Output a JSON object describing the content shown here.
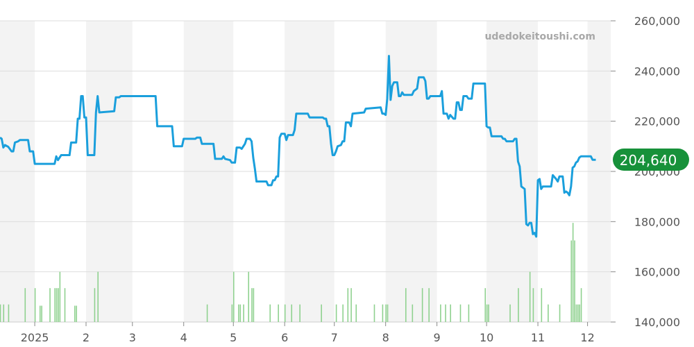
{
  "watermark": "udedokeitoushi.com",
  "chart_data": {
    "type": "line",
    "title": "",
    "xlabel": "",
    "ylabel": "",
    "ylim": [
      140000,
      260000
    ],
    "y_ticks": [
      140000,
      160000,
      180000,
      200000,
      220000,
      240000,
      260000
    ],
    "y_tick_labels": [
      "140,000",
      "160,000",
      "180,000",
      "200,000",
      "220,000",
      "240,000",
      "260,000"
    ],
    "x_range": [
      "2024-12-11",
      "2025-12-15"
    ],
    "x_ticks": [
      {
        "date": "2025-01-01",
        "label": "2025"
      },
      {
        "date": "2025-02-01",
        "label": "2"
      },
      {
        "date": "2025-03-01",
        "label": "3"
      },
      {
        "date": "2025-04-01",
        "label": "4"
      },
      {
        "date": "2025-05-01",
        "label": "5"
      },
      {
        "date": "2025-06-01",
        "label": "6"
      },
      {
        "date": "2025-07-01",
        "label": "7"
      },
      {
        "date": "2025-08-01",
        "label": "8"
      },
      {
        "date": "2025-09-01",
        "label": "9"
      },
      {
        "date": "2025-10-01",
        "label": "10"
      },
      {
        "date": "2025-11-01",
        "label": "11"
      },
      {
        "date": "2025-12-01",
        "label": "12"
      }
    ],
    "grid": true,
    "line_color": "#1a9fdc",
    "volume_color": "#8fd18f",
    "last_value_color": "#17913a",
    "last_value_label": "204,640",
    "series": [
      {
        "points": [
          [
            "2024-12-11",
            213500
          ],
          [
            "2024-12-12",
            213000
          ],
          [
            "2024-12-13",
            209500
          ],
          [
            "2024-12-14",
            210500
          ],
          [
            "2024-12-16",
            209800
          ],
          [
            "2024-12-18",
            208000
          ],
          [
            "2024-12-19",
            208000
          ],
          [
            "2024-12-20",
            211500
          ],
          [
            "2024-12-22",
            212000
          ],
          [
            "2024-12-23",
            212500
          ],
          [
            "2024-12-28",
            212500
          ],
          [
            "2024-12-29",
            208000
          ],
          [
            "2024-12-31",
            208000
          ],
          [
            "2025-01-01",
            203000
          ],
          [
            "2025-01-13",
            203000
          ],
          [
            "2025-01-14",
            206000
          ],
          [
            "2025-01-15",
            204500
          ],
          [
            "2025-01-17",
            206500
          ],
          [
            "2025-01-22",
            206500
          ],
          [
            "2025-01-23",
            211500
          ],
          [
            "2025-01-26",
            211500
          ],
          [
            "2025-01-27",
            221000
          ],
          [
            "2025-01-28",
            221000
          ],
          [
            "2025-01-29",
            230000
          ],
          [
            "2025-01-30",
            230000
          ],
          [
            "2025-01-31",
            221500
          ],
          [
            "2025-02-01",
            221500
          ],
          [
            "2025-02-02",
            206500
          ],
          [
            "2025-02-06",
            206500
          ],
          [
            "2025-02-07",
            223500
          ],
          [
            "2025-02-08",
            230000
          ],
          [
            "2025-02-09",
            223500
          ],
          [
            "2025-02-18",
            224000
          ],
          [
            "2025-02-19",
            229500
          ],
          [
            "2025-02-21",
            229500
          ],
          [
            "2025-02-22",
            230000
          ],
          [
            "2025-03-15",
            230000
          ],
          [
            "2025-03-16",
            218000
          ],
          [
            "2025-03-25",
            218000
          ],
          [
            "2025-03-26",
            210000
          ],
          [
            "2025-03-31",
            210000
          ],
          [
            "2025-04-01",
            213000
          ],
          [
            "2025-04-08",
            213000
          ],
          [
            "2025-04-09",
            213500
          ],
          [
            "2025-04-11",
            213500
          ],
          [
            "2025-04-12",
            211000
          ],
          [
            "2025-04-19",
            211000
          ],
          [
            "2025-04-20",
            205000
          ],
          [
            "2025-04-24",
            205000
          ],
          [
            "2025-04-25",
            206000
          ],
          [
            "2025-04-26",
            205000
          ],
          [
            "2025-04-29",
            204500
          ],
          [
            "2025-04-30",
            203500
          ],
          [
            "2025-05-02",
            203500
          ],
          [
            "2025-05-03",
            209500
          ],
          [
            "2025-05-05",
            209500
          ],
          [
            "2025-05-06",
            209000
          ],
          [
            "2025-05-08",
            211000
          ],
          [
            "2025-05-09",
            213000
          ],
          [
            "2025-05-11",
            213000
          ],
          [
            "2025-05-12",
            212000
          ],
          [
            "2025-05-13",
            205500
          ],
          [
            "2025-05-14",
            201000
          ],
          [
            "2025-05-15",
            196000
          ],
          [
            "2025-05-21",
            196000
          ],
          [
            "2025-05-22",
            194500
          ],
          [
            "2025-05-24",
            194500
          ],
          [
            "2025-05-25",
            196500
          ],
          [
            "2025-05-26",
            196500
          ],
          [
            "2025-05-27",
            198000
          ],
          [
            "2025-05-28",
            198000
          ],
          [
            "2025-05-29",
            213500
          ],
          [
            "2025-05-30",
            215000
          ],
          [
            "2025-06-01",
            215000
          ],
          [
            "2025-06-02",
            212500
          ],
          [
            "2025-06-03",
            214500
          ],
          [
            "2025-06-06",
            214500
          ],
          [
            "2025-06-07",
            216500
          ],
          [
            "2025-06-08",
            223000
          ],
          [
            "2025-06-15",
            223000
          ],
          [
            "2025-06-16",
            221500
          ],
          [
            "2025-06-24",
            221500
          ],
          [
            "2025-06-25",
            221000
          ],
          [
            "2025-06-26",
            221000
          ],
          [
            "2025-06-27",
            218000
          ],
          [
            "2025-06-28",
            218000
          ],
          [
            "2025-06-29",
            211000
          ],
          [
            "2025-06-30",
            206500
          ],
          [
            "2025-07-01",
            206500
          ],
          [
            "2025-07-02",
            208000
          ],
          [
            "2025-07-03",
            210000
          ],
          [
            "2025-07-05",
            210500
          ],
          [
            "2025-07-06",
            212000
          ],
          [
            "2025-07-07",
            212000
          ],
          [
            "2025-07-08",
            219500
          ],
          [
            "2025-07-10",
            219500
          ],
          [
            "2025-07-11",
            218000
          ],
          [
            "2025-07-12",
            223000
          ],
          [
            "2025-07-19",
            223500
          ],
          [
            "2025-07-20",
            225000
          ],
          [
            "2025-07-29",
            225500
          ],
          [
            "2025-07-30",
            223000
          ],
          [
            "2025-07-31",
            223000
          ],
          [
            "2025-08-01",
            222500
          ],
          [
            "2025-08-02",
            229000
          ],
          [
            "2025-08-03",
            246000
          ],
          [
            "2025-08-04",
            228500
          ],
          [
            "2025-08-05",
            234000
          ],
          [
            "2025-08-06",
            235500
          ],
          [
            "2025-08-08",
            235500
          ],
          [
            "2025-08-09",
            230000
          ],
          [
            "2025-08-10",
            230000
          ],
          [
            "2025-08-11",
            231500
          ],
          [
            "2025-08-12",
            230500
          ],
          [
            "2025-08-17",
            230500
          ],
          [
            "2025-08-18",
            232000
          ],
          [
            "2025-08-20",
            233000
          ],
          [
            "2025-08-21",
            237500
          ],
          [
            "2025-08-24",
            237500
          ],
          [
            "2025-08-25",
            236000
          ],
          [
            "2025-08-26",
            229000
          ],
          [
            "2025-08-27",
            229000
          ],
          [
            "2025-08-28",
            230000
          ],
          [
            "2025-09-03",
            230000
          ],
          [
            "2025-09-04",
            232000
          ],
          [
            "2025-09-05",
            223000
          ],
          [
            "2025-09-07",
            223000
          ],
          [
            "2025-09-08",
            221000
          ],
          [
            "2025-09-09",
            222500
          ],
          [
            "2025-09-11",
            221000
          ],
          [
            "2025-09-12",
            221000
          ],
          [
            "2025-09-13",
            227500
          ],
          [
            "2025-09-14",
            227500
          ],
          [
            "2025-09-15",
            224500
          ],
          [
            "2025-09-16",
            224500
          ],
          [
            "2025-09-17",
            230000
          ],
          [
            "2025-09-19",
            230000
          ],
          [
            "2025-09-20",
            229000
          ],
          [
            "2025-09-22",
            229000
          ],
          [
            "2025-09-23",
            235000
          ],
          [
            "2025-09-30",
            235000
          ],
          [
            "2025-10-01",
            218000
          ],
          [
            "2025-10-02",
            217500
          ],
          [
            "2025-10-03",
            217500
          ],
          [
            "2025-10-04",
            214000
          ],
          [
            "2025-10-10",
            214000
          ],
          [
            "2025-10-11",
            213000
          ],
          [
            "2025-10-12",
            213000
          ],
          [
            "2025-10-13",
            212000
          ],
          [
            "2025-10-17",
            212000
          ],
          [
            "2025-10-18",
            213000
          ],
          [
            "2025-10-19",
            213000
          ],
          [
            "2025-10-20",
            204000
          ],
          [
            "2025-10-21",
            202000
          ],
          [
            "2025-10-22",
            194000
          ],
          [
            "2025-10-24",
            193000
          ],
          [
            "2025-10-25",
            179000
          ],
          [
            "2025-10-26",
            178500
          ],
          [
            "2025-10-27",
            179500
          ],
          [
            "2025-10-28",
            179500
          ],
          [
            "2025-10-29",
            175000
          ],
          [
            "2025-10-30",
            175500
          ],
          [
            "2025-10-31",
            174000
          ],
          [
            "2025-11-01",
            196500
          ],
          [
            "2025-11-02",
            197000
          ],
          [
            "2025-11-03",
            193000
          ],
          [
            "2025-11-04",
            194000
          ],
          [
            "2025-11-09",
            194000
          ],
          [
            "2025-11-10",
            198500
          ],
          [
            "2025-11-12",
            197000
          ],
          [
            "2025-11-13",
            196000
          ],
          [
            "2025-11-14",
            198000
          ],
          [
            "2025-11-16",
            198000
          ],
          [
            "2025-11-17",
            191500
          ],
          [
            "2025-11-18",
            192000
          ],
          [
            "2025-11-19",
            191500
          ],
          [
            "2025-11-20",
            190500
          ],
          [
            "2025-11-21",
            194000
          ],
          [
            "2025-11-22",
            201500
          ],
          [
            "2025-11-23",
            202000
          ],
          [
            "2025-11-24",
            203500
          ],
          [
            "2025-11-25",
            204000
          ],
          [
            "2025-11-26",
            205500
          ],
          [
            "2025-11-27",
            206000
          ],
          [
            "2025-12-03",
            206000
          ],
          [
            "2025-12-04",
            204640
          ],
          [
            "2025-12-06",
            204640
          ]
        ]
      }
    ],
    "volume": [
      [
        "2024-12-11",
        147000
      ],
      [
        "2024-12-13",
        147000
      ],
      [
        "2024-12-16",
        147000
      ],
      [
        "2024-12-26",
        153500
      ],
      [
        "2025-01-01",
        153500
      ],
      [
        "2025-01-04",
        146500
      ],
      [
        "2025-01-05",
        146500
      ],
      [
        "2025-01-10",
        153500
      ],
      [
        "2025-01-13",
        153500
      ],
      [
        "2025-01-14",
        153500
      ],
      [
        "2025-01-15",
        153500
      ],
      [
        "2025-01-16",
        160000
      ],
      [
        "2025-01-19",
        153500
      ],
      [
        "2025-01-25",
        146500
      ],
      [
        "2025-01-26",
        146500
      ],
      [
        "2025-02-06",
        153500
      ],
      [
        "2025-02-08",
        160000
      ],
      [
        "2025-04-15",
        147000
      ],
      [
        "2025-04-30",
        147000
      ],
      [
        "2025-05-01",
        160000
      ],
      [
        "2025-05-04",
        147000
      ],
      [
        "2025-05-05",
        147000
      ],
      [
        "2025-05-07",
        147000
      ],
      [
        "2025-05-10",
        160000
      ],
      [
        "2025-05-12",
        153500
      ],
      [
        "2025-05-13",
        153500
      ],
      [
        "2025-05-23",
        147000
      ],
      [
        "2025-05-28",
        147000
      ],
      [
        "2025-06-01",
        147000
      ],
      [
        "2025-06-05",
        147000
      ],
      [
        "2025-06-10",
        147000
      ],
      [
        "2025-06-23",
        147000
      ],
      [
        "2025-07-02",
        147000
      ],
      [
        "2025-07-06",
        147000
      ],
      [
        "2025-07-09",
        153500
      ],
      [
        "2025-07-11",
        153500
      ],
      [
        "2025-07-14",
        147000
      ],
      [
        "2025-07-25",
        147000
      ],
      [
        "2025-07-30",
        147000
      ],
      [
        "2025-08-01",
        147000
      ],
      [
        "2025-08-02",
        147000
      ],
      [
        "2025-08-13",
        153500
      ],
      [
        "2025-08-17",
        147000
      ],
      [
        "2025-08-23",
        153500
      ],
      [
        "2025-08-27",
        153500
      ],
      [
        "2025-09-03",
        147000
      ],
      [
        "2025-09-06",
        147000
      ],
      [
        "2025-09-09",
        147000
      ],
      [
        "2025-09-15",
        147000
      ],
      [
        "2025-09-20",
        147000
      ],
      [
        "2025-09-30",
        153500
      ],
      [
        "2025-10-01",
        147000
      ],
      [
        "2025-10-02",
        147000
      ],
      [
        "2025-10-15",
        147000
      ],
      [
        "2025-10-20",
        153500
      ],
      [
        "2025-10-27",
        160000
      ],
      [
        "2025-10-29",
        153500
      ],
      [
        "2025-11-03",
        153500
      ],
      [
        "2025-11-07",
        147000
      ],
      [
        "2025-11-14",
        147000
      ],
      [
        "2025-11-21",
        172500
      ],
      [
        "2025-11-22",
        179500
      ],
      [
        "2025-11-23",
        172500
      ],
      [
        "2025-11-24",
        147000
      ],
      [
        "2025-11-25",
        147000
      ],
      [
        "2025-11-26",
        147000
      ],
      [
        "2025-11-27",
        153500
      ]
    ]
  }
}
